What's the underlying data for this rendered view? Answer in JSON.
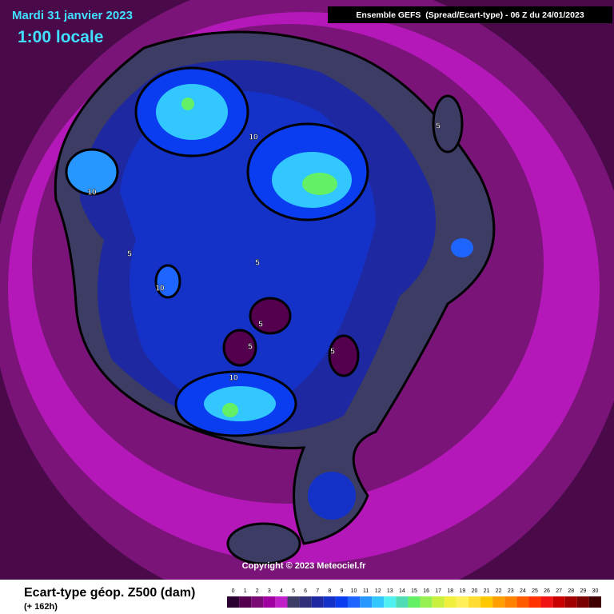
{
  "header": {
    "date": "Mardi 31 janvier 2023",
    "time": "1:00 locale",
    "model": "Ensemble GEFS  (Spread/Ecart-type) - 06 Z du 24/01/2023"
  },
  "map": {
    "contour_labels": [
      "10",
      "10",
      "10",
      "10",
      "5",
      "5",
      "5",
      "5",
      "5",
      "5"
    ]
  },
  "copyright": "Copyright © 2023 Meteociel.fr",
  "legend": {
    "title": "Ecart-type géop. Z500 (dam)",
    "subtitle": "(+ 162h)",
    "scale": [
      0,
      1,
      2,
      3,
      4,
      5,
      6,
      7,
      8,
      9,
      10,
      11,
      12,
      13,
      14,
      15,
      16,
      17,
      18,
      19,
      20,
      21,
      22,
      23,
      24,
      25,
      26,
      27,
      28,
      29,
      30
    ],
    "colors": [
      "#2a0030",
      "#55004f",
      "#7a0a74",
      "#a000a0",
      "#c020c8",
      "#3c3c64",
      "#30307a",
      "#1e28a0",
      "#1432c8",
      "#0a3cf0",
      "#1e64ff",
      "#2896ff",
      "#32c8ff",
      "#50f0f0",
      "#50dcb4",
      "#64f064",
      "#96f050",
      "#c8f03c",
      "#f0f03c",
      "#fff05a",
      "#ffdc32",
      "#ffc800",
      "#ffa000",
      "#ff8200",
      "#ff5a00",
      "#ff3200",
      "#f01414",
      "#c80000",
      "#a00000",
      "#780000",
      "#400000"
    ]
  }
}
